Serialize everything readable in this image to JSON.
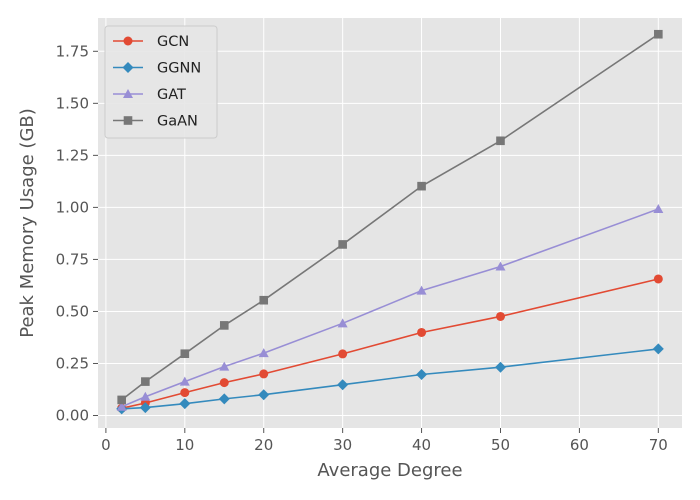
{
  "chart_data": {
    "type": "line",
    "title": "",
    "xlabel": "Average Degree",
    "ylabel": "Peak Memory Usage (GB)",
    "x": [
      2,
      5,
      10,
      15,
      20,
      30,
      40,
      50,
      70
    ],
    "xlim": [
      -1,
      73
    ],
    "ylim": [
      -0.06,
      1.91
    ],
    "xticks": [
      0,
      10,
      20,
      30,
      40,
      50,
      60,
      70
    ],
    "xtick_labels": [
      "0",
      "10",
      "20",
      "30",
      "40",
      "50",
      "60",
      "70"
    ],
    "yticks": [
      0.0,
      0.25,
      0.5,
      0.75,
      1.0,
      1.25,
      1.5,
      1.75
    ],
    "ytick_labels": [
      "0.00",
      "0.25",
      "0.50",
      "0.75",
      "1.00",
      "1.25",
      "1.50",
      "1.75"
    ],
    "grid": true,
    "legend_position": "top-left",
    "background": "#e5e5e5",
    "series": [
      {
        "name": "GCN",
        "marker": "circle",
        "color": "#e24a33",
        "values": [
          0.035,
          0.06,
          0.11,
          0.158,
          0.2,
          0.296,
          0.399,
          0.476,
          0.656
        ]
      },
      {
        "name": "GGNN",
        "marker": "diamond",
        "color": "#348abd",
        "values": [
          0.032,
          0.038,
          0.057,
          0.08,
          0.1,
          0.148,
          0.197,
          0.232,
          0.32
        ]
      },
      {
        "name": "GAT",
        "marker": "triangle",
        "color": "#988ed5",
        "values": [
          0.042,
          0.09,
          0.163,
          0.235,
          0.3,
          0.443,
          0.6,
          0.716,
          0.992
        ]
      },
      {
        "name": "GaAN",
        "marker": "square",
        "color": "#777777",
        "values": [
          0.075,
          0.163,
          0.297,
          0.433,
          0.554,
          0.822,
          1.102,
          1.32,
          1.832
        ]
      }
    ]
  }
}
